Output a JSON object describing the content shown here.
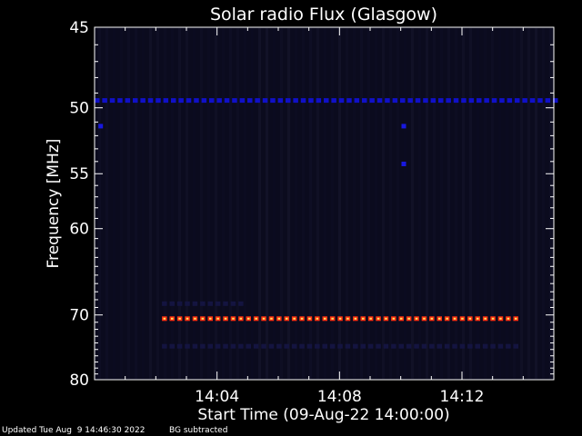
{
  "chart_data": {
    "type": "heatmap",
    "title": "Solar radio Flux (Glasgow)",
    "xlabel": "Start Time (09-Aug-22 14:00:00)",
    "ylabel": "Frequency [MHz]",
    "x_unit": "minutes after 14:00:00",
    "xlim": [
      0,
      15
    ],
    "ylim": [
      45,
      80
    ],
    "x_ticks": [
      {
        "value": 4,
        "label": "14:04"
      },
      {
        "value": 8,
        "label": "14:08"
      },
      {
        "value": 12,
        "label": "14:12"
      }
    ],
    "y_ticks": [
      {
        "value": 45,
        "label": "45"
      },
      {
        "value": 50,
        "label": "50"
      },
      {
        "value": 55,
        "label": "55"
      },
      {
        "value": 60,
        "label": "60"
      },
      {
        "value": 70,
        "label": "70"
      },
      {
        "value": 80,
        "label": "80"
      }
    ],
    "background_color": "#0b0b1e",
    "features": [
      {
        "name": "band-49.5MHz",
        "freq": 49.5,
        "t_start": 0,
        "t_end": 15,
        "color": "#1010c8"
      },
      {
        "name": "band-70.5MHz",
        "freq": 70.5,
        "t_start": 2.2,
        "t_end": 13.9,
        "color": "#ff3010",
        "core_color": "#ffe060"
      },
      {
        "name": "band-74.5MHz",
        "freq": 74.5,
        "t_start": 2.2,
        "t_end": 13.9,
        "color": "#141440"
      },
      {
        "name": "band-68.5MHz",
        "freq": 68.5,
        "t_start": 2.2,
        "t_end": 4.8,
        "color": "#141440"
      }
    ],
    "spots": [
      {
        "t": 0.2,
        "freq": 51.3,
        "color": "#1818e0"
      },
      {
        "t": 10.1,
        "freq": 51.3,
        "color": "#1818e0"
      },
      {
        "t": 10.1,
        "freq": 54.2,
        "color": "#1818e0"
      }
    ]
  },
  "footer": {
    "updated": "Updated Tue Aug  9 14:46:30 2022",
    "bg_note": "BG subtracted"
  }
}
